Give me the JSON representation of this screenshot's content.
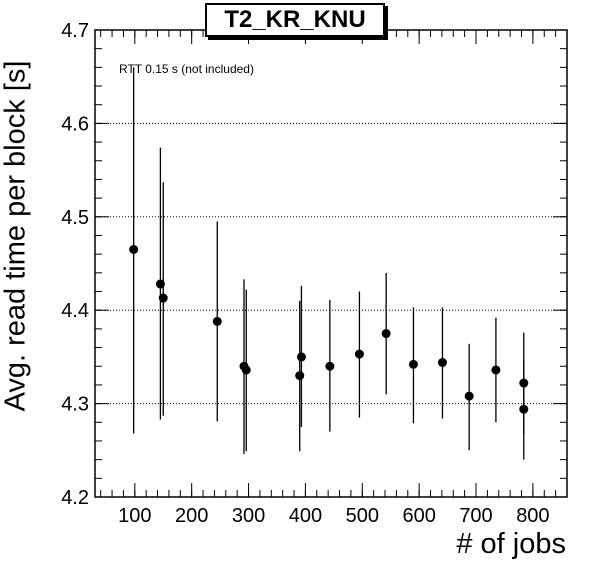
{
  "chart_data": {
    "type": "scatter",
    "title": "T2_KR_KNU",
    "xlabel": "# of jobs",
    "ylabel": "Avg. read time per block [s]",
    "annotation": "RTT 0.15 s (not included)",
    "xlim": [
      30,
      860
    ],
    "ylim": [
      4.2,
      4.7
    ],
    "xticks": [
      "100",
      "200",
      "300",
      "400",
      "500",
      "600",
      "700",
      "800"
    ],
    "yticks": [
      "4.2",
      "4.3",
      "4.4",
      "4.5",
      "4.6",
      "4.7"
    ],
    "grid": "horizontal dotted",
    "marker_color": "#000000",
    "points": [
      {
        "x": 98,
        "y": 4.465,
        "ylo": 4.268,
        "yhi": 4.66
      },
      {
        "x": 145,
        "y": 4.428,
        "ylo": 4.283,
        "yhi": 4.574
      },
      {
        "x": 150,
        "y": 4.413,
        "ylo": 4.287,
        "yhi": 4.537
      },
      {
        "x": 245,
        "y": 4.388,
        "ylo": 4.281,
        "yhi": 4.495
      },
      {
        "x": 292,
        "y": 4.34,
        "ylo": 4.246,
        "yhi": 4.433
      },
      {
        "x": 296,
        "y": 4.336,
        "ylo": 4.249,
        "yhi": 4.422
      },
      {
        "x": 390,
        "y": 4.33,
        "ylo": 4.249,
        "yhi": 4.41
      },
      {
        "x": 393,
        "y": 4.35,
        "ylo": 4.275,
        "yhi": 4.426
      },
      {
        "x": 443,
        "y": 4.34,
        "ylo": 4.27,
        "yhi": 4.411
      },
      {
        "x": 495,
        "y": 4.353,
        "ylo": 4.285,
        "yhi": 4.42
      },
      {
        "x": 542,
        "y": 4.375,
        "ylo": 4.31,
        "yhi": 4.44
      },
      {
        "x": 590,
        "y": 4.342,
        "ylo": 4.279,
        "yhi": 4.403
      },
      {
        "x": 641,
        "y": 4.344,
        "ylo": 4.284,
        "yhi": 4.403
      },
      {
        "x": 688,
        "y": 4.308,
        "ylo": 4.25,
        "yhi": 4.364
      },
      {
        "x": 735,
        "y": 4.336,
        "ylo": 4.28,
        "yhi": 4.392
      },
      {
        "x": 784,
        "y": 4.322,
        "ylo": 4.268,
        "yhi": 4.376
      },
      {
        "x": 784,
        "y": 4.294,
        "ylo": 4.24,
        "yhi": 4.346
      }
    ]
  }
}
